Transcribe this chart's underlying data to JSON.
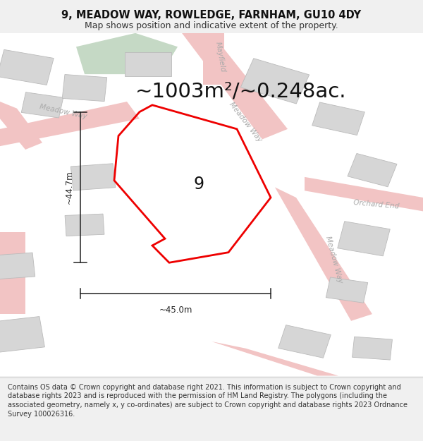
{
  "title": "9, MEADOW WAY, ROWLEDGE, FARNHAM, GU10 4DY",
  "subtitle": "Map shows position and indicative extent of the property.",
  "area_text": "~1003m²/~0.248ac.",
  "label_number": "9",
  "dim_vertical": "~44.7m",
  "dim_horizontal": "~45.0m",
  "footer": "Contains OS data © Crown copyright and database right 2021. This information is subject to Crown copyright and database rights 2023 and is reproduced with the permission of HM Land Registry. The polygons (including the associated geometry, namely x, y co-ordinates) are subject to Crown copyright and database rights 2023 Ordnance Survey 100026316.",
  "bg_color": "#f0f0f0",
  "map_bg": "#ffffff",
  "road_color": "#f2c4c4",
  "building_color": "#d6d6d6",
  "building_stroke": "#bbbbbb",
  "green_color": "#c5d9c5",
  "plot_color": "#ee0000",
  "plot_lw": 2.0,
  "road_label_color": "#aaaaaa",
  "dim_color": "#222222",
  "title_fontsize": 10.5,
  "subtitle_fontsize": 9,
  "area_fontsize": 21,
  "label_fontsize": 17,
  "footer_fontsize": 7.0,
  "road_label_fontsize": 7.5
}
